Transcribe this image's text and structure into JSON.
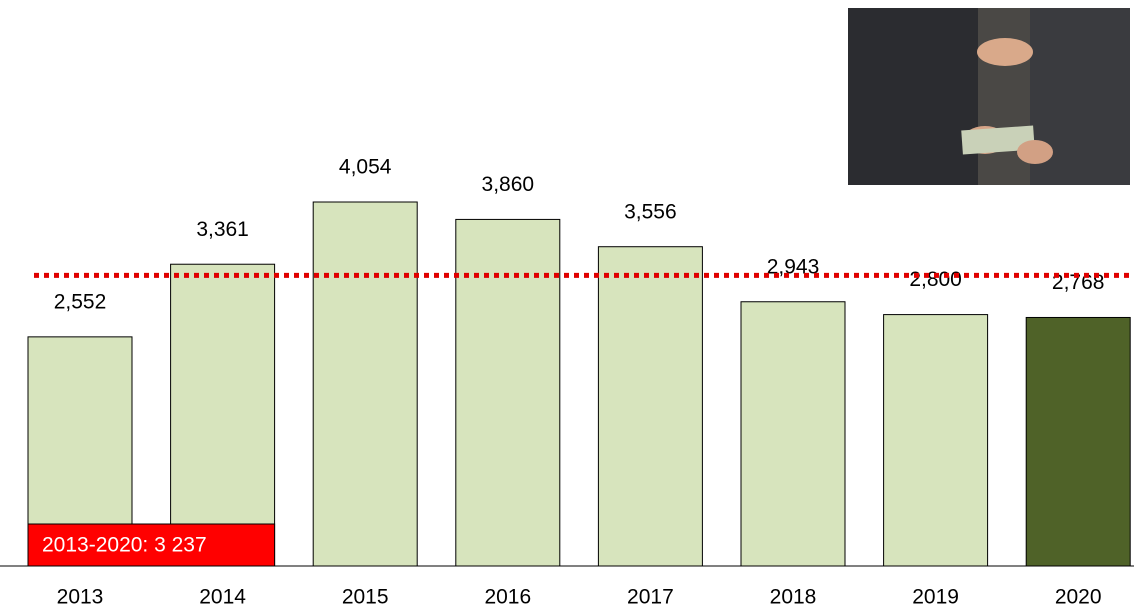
{
  "chart_data": {
    "type": "bar",
    "categories": [
      "2013",
      "2014",
      "2015",
      "2016",
      "2017",
      "2018",
      "2019",
      "2020"
    ],
    "values": [
      2552,
      3361,
      4054,
      3860,
      3556,
      2943,
      2800,
      2768
    ],
    "value_labels": [
      "2,552",
      "3,361",
      "4,054",
      "3,860",
      "3,556",
      "2,943",
      "2,800",
      "2,768"
    ],
    "colors": [
      "#d7e4bd",
      "#d7e4bd",
      "#d7e4bd",
      "#d7e4bd",
      "#d7e4bd",
      "#d7e4bd",
      "#d7e4bd",
      "#4f6228"
    ],
    "average": 3237,
    "average_label": "2013-2020: 3 237",
    "average_color": "#e00000"
  }
}
